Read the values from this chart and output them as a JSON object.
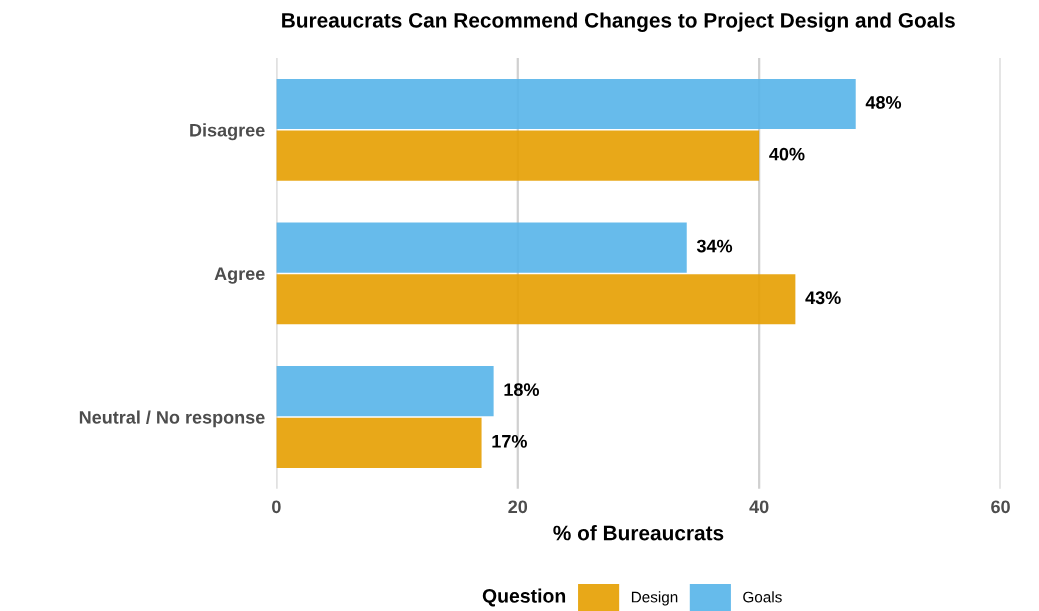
{
  "chart_data": {
    "type": "bar",
    "orientation": "horizontal",
    "title": "Bureaucrats Can Recommend Changes to Project Design and Goals",
    "xlabel": "% of Bureaucrats",
    "legend_title": "Question",
    "categories": [
      "Disagree",
      "Agree",
      "Neutral / No response"
    ],
    "series": [
      {
        "name": "Design",
        "color": "#e69f00",
        "values": [
          40,
          43,
          17
        ],
        "value_labels": [
          "40%",
          "43%",
          "17%"
        ]
      },
      {
        "name": "Goals",
        "color": "#56b4e9",
        "values": [
          48,
          34,
          18
        ],
        "value_labels": [
          "48%",
          "34%",
          "18%"
        ]
      }
    ],
    "xlim": [
      0,
      60
    ],
    "xticks": [
      0,
      20,
      40,
      60
    ],
    "grid": "x",
    "legend": "bottom"
  }
}
